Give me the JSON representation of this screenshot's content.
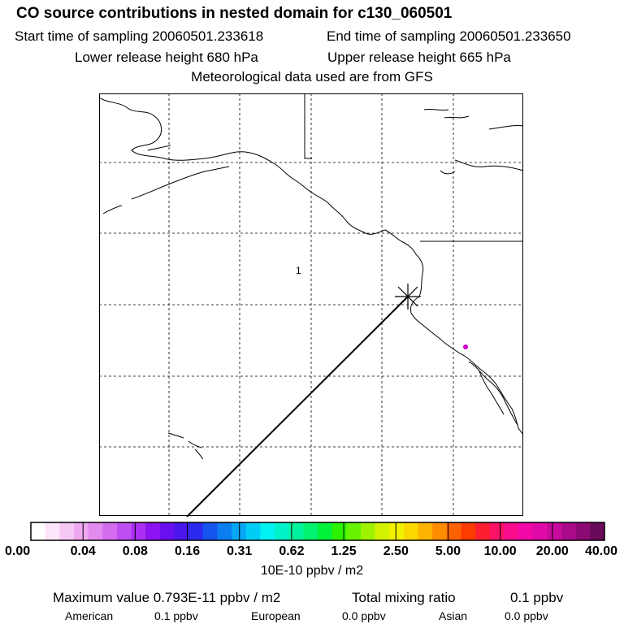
{
  "header": {
    "title": "CO  source contributions in nested domain for c130_060501",
    "start_time": "Start time of sampling 20060501.233618",
    "end_time": "End time of sampling 20060501.233650",
    "lower_height": "Lower release height  680 hPa",
    "upper_height": "Upper release height  665 hPa",
    "met_data": "Meteorological data used are from GFS"
  },
  "map": {
    "marker_label": "1",
    "release_marker_color": "#cc00cc"
  },
  "colorbar": {
    "colors": [
      "#ffffff",
      "#fde6fb",
      "#f6c9f5",
      "#eea8f0",
      "#e28aee",
      "#d46cf0",
      "#c04ff1",
      "#aa2ff2",
      "#8c14f2",
      "#6a0ff0",
      "#4a16ee",
      "#2c2aee",
      "#1654f0",
      "#0b7ef2",
      "#06a6f4",
      "#00cdf6",
      "#00f2f2",
      "#00f2c9",
      "#00f29f",
      "#00f26e",
      "#00f23a",
      "#2cf200",
      "#66f200",
      "#9ef200",
      "#d2f200",
      "#f2f200",
      "#fbd800",
      "#fdb400",
      "#fd8c00",
      "#fd6200",
      "#fd3a00",
      "#fd1f2f",
      "#fc1266",
      "#fa0c8e",
      "#f20aa8",
      "#e00aa8",
      "#c80a9c",
      "#aa0a8a",
      "#8c0a74",
      "#6a0a5a"
    ],
    "ticks": [
      "0.00",
      "0.04",
      "0.08",
      "0.16",
      "0.31",
      "0.62",
      "1.25",
      "2.50",
      "5.00",
      "10.00",
      "20.00",
      "40.00"
    ],
    "unit": "10E-10 ppbv / m2"
  },
  "summary": {
    "max_label": "Maximum value  0.793E-11 ppbv / m2",
    "total_label": "Total mixing ratio",
    "total_value": "0.1 ppbv",
    "american_label": "American",
    "american_value": "0.1 ppbv",
    "european_label": "European",
    "european_value": "0.0 ppbv",
    "asian_label": "Asian",
    "asian_value": "0.0 ppbv"
  }
}
